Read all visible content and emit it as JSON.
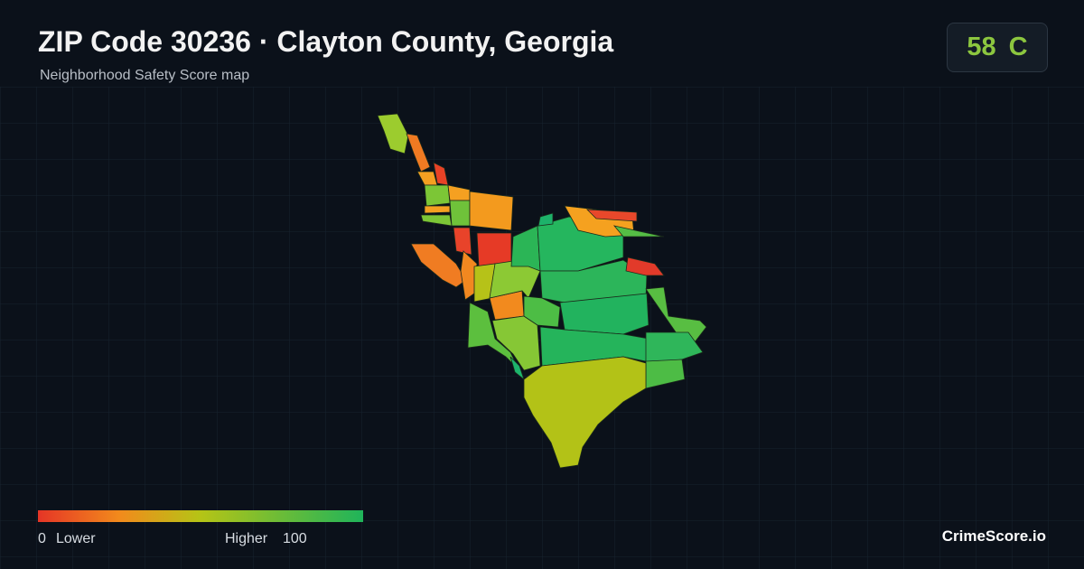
{
  "header": {
    "title": "ZIP Code 30236 · Clayton County, Georgia",
    "subtitle": "Neighborhood Safety Score map"
  },
  "score": {
    "value": "58",
    "grade": "C"
  },
  "legend": {
    "min": "0",
    "min_label": "Lower",
    "max_label": "Higher",
    "max": "100"
  },
  "brand": "CrimeScore.io"
}
